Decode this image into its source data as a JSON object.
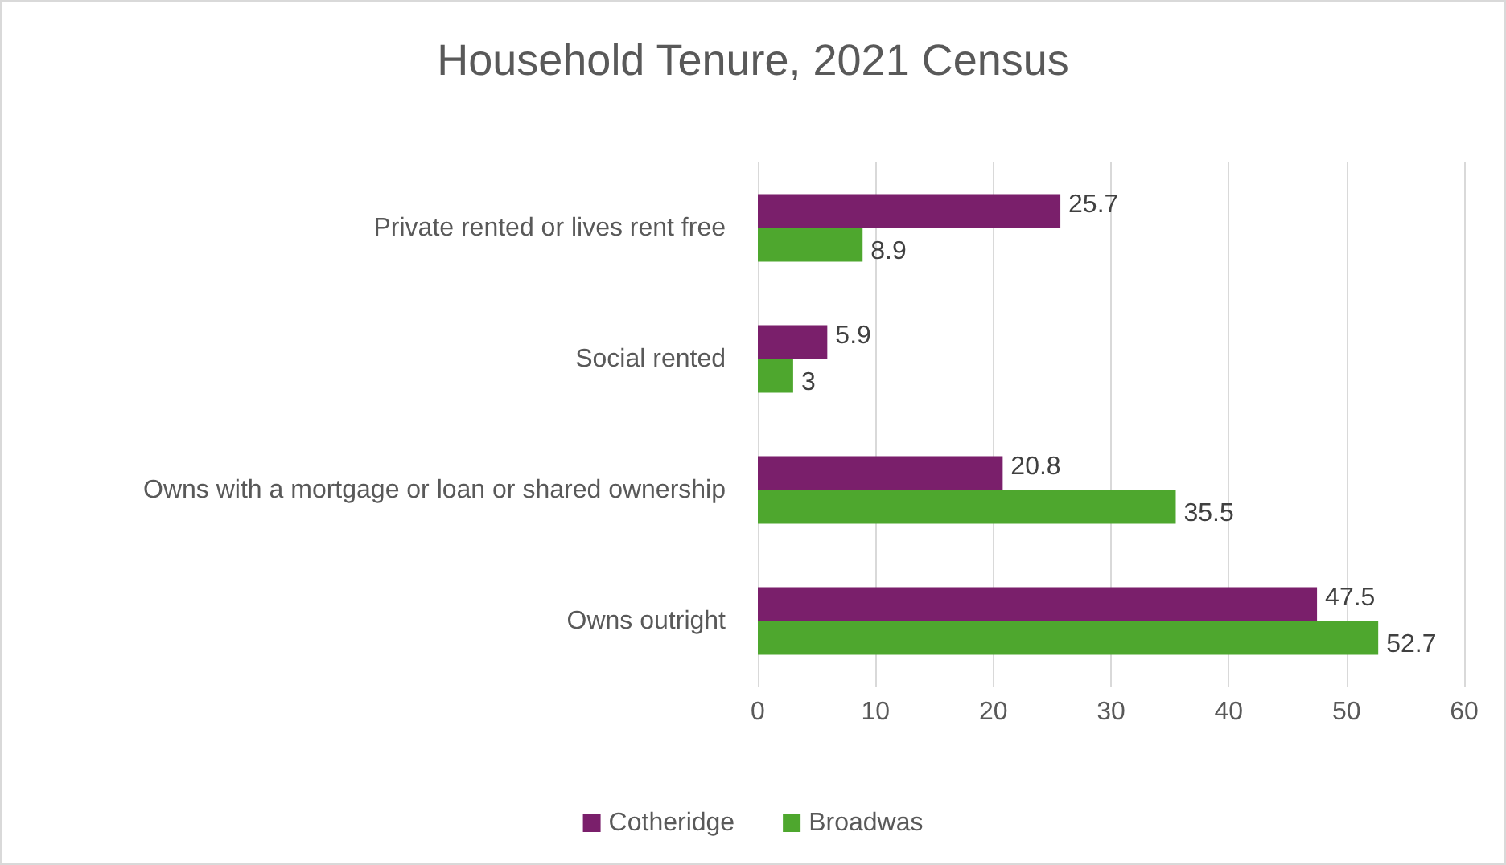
{
  "chart_data": {
    "type": "bar",
    "title": "Household Tenure, 2021 Census",
    "orientation": "horizontal",
    "categories": [
      "Private rented or lives rent free",
      "Social rented",
      "Owns with a mortgage or loan or shared ownership",
      "Owns outright"
    ],
    "series": [
      {
        "name": "Cotheridge",
        "color": "#7a1f6b",
        "values": [
          25.7,
          5.9,
          20.8,
          47.5
        ]
      },
      {
        "name": "Broadwas",
        "color": "#4ea72e",
        "values": [
          8.9,
          3,
          35.5,
          52.7
        ]
      }
    ],
    "xlim": [
      0,
      60
    ],
    "xticks": [
      0,
      10,
      20,
      30,
      40,
      50,
      60
    ],
    "grid": "x",
    "legend": "bottom",
    "data_labels": true
  }
}
